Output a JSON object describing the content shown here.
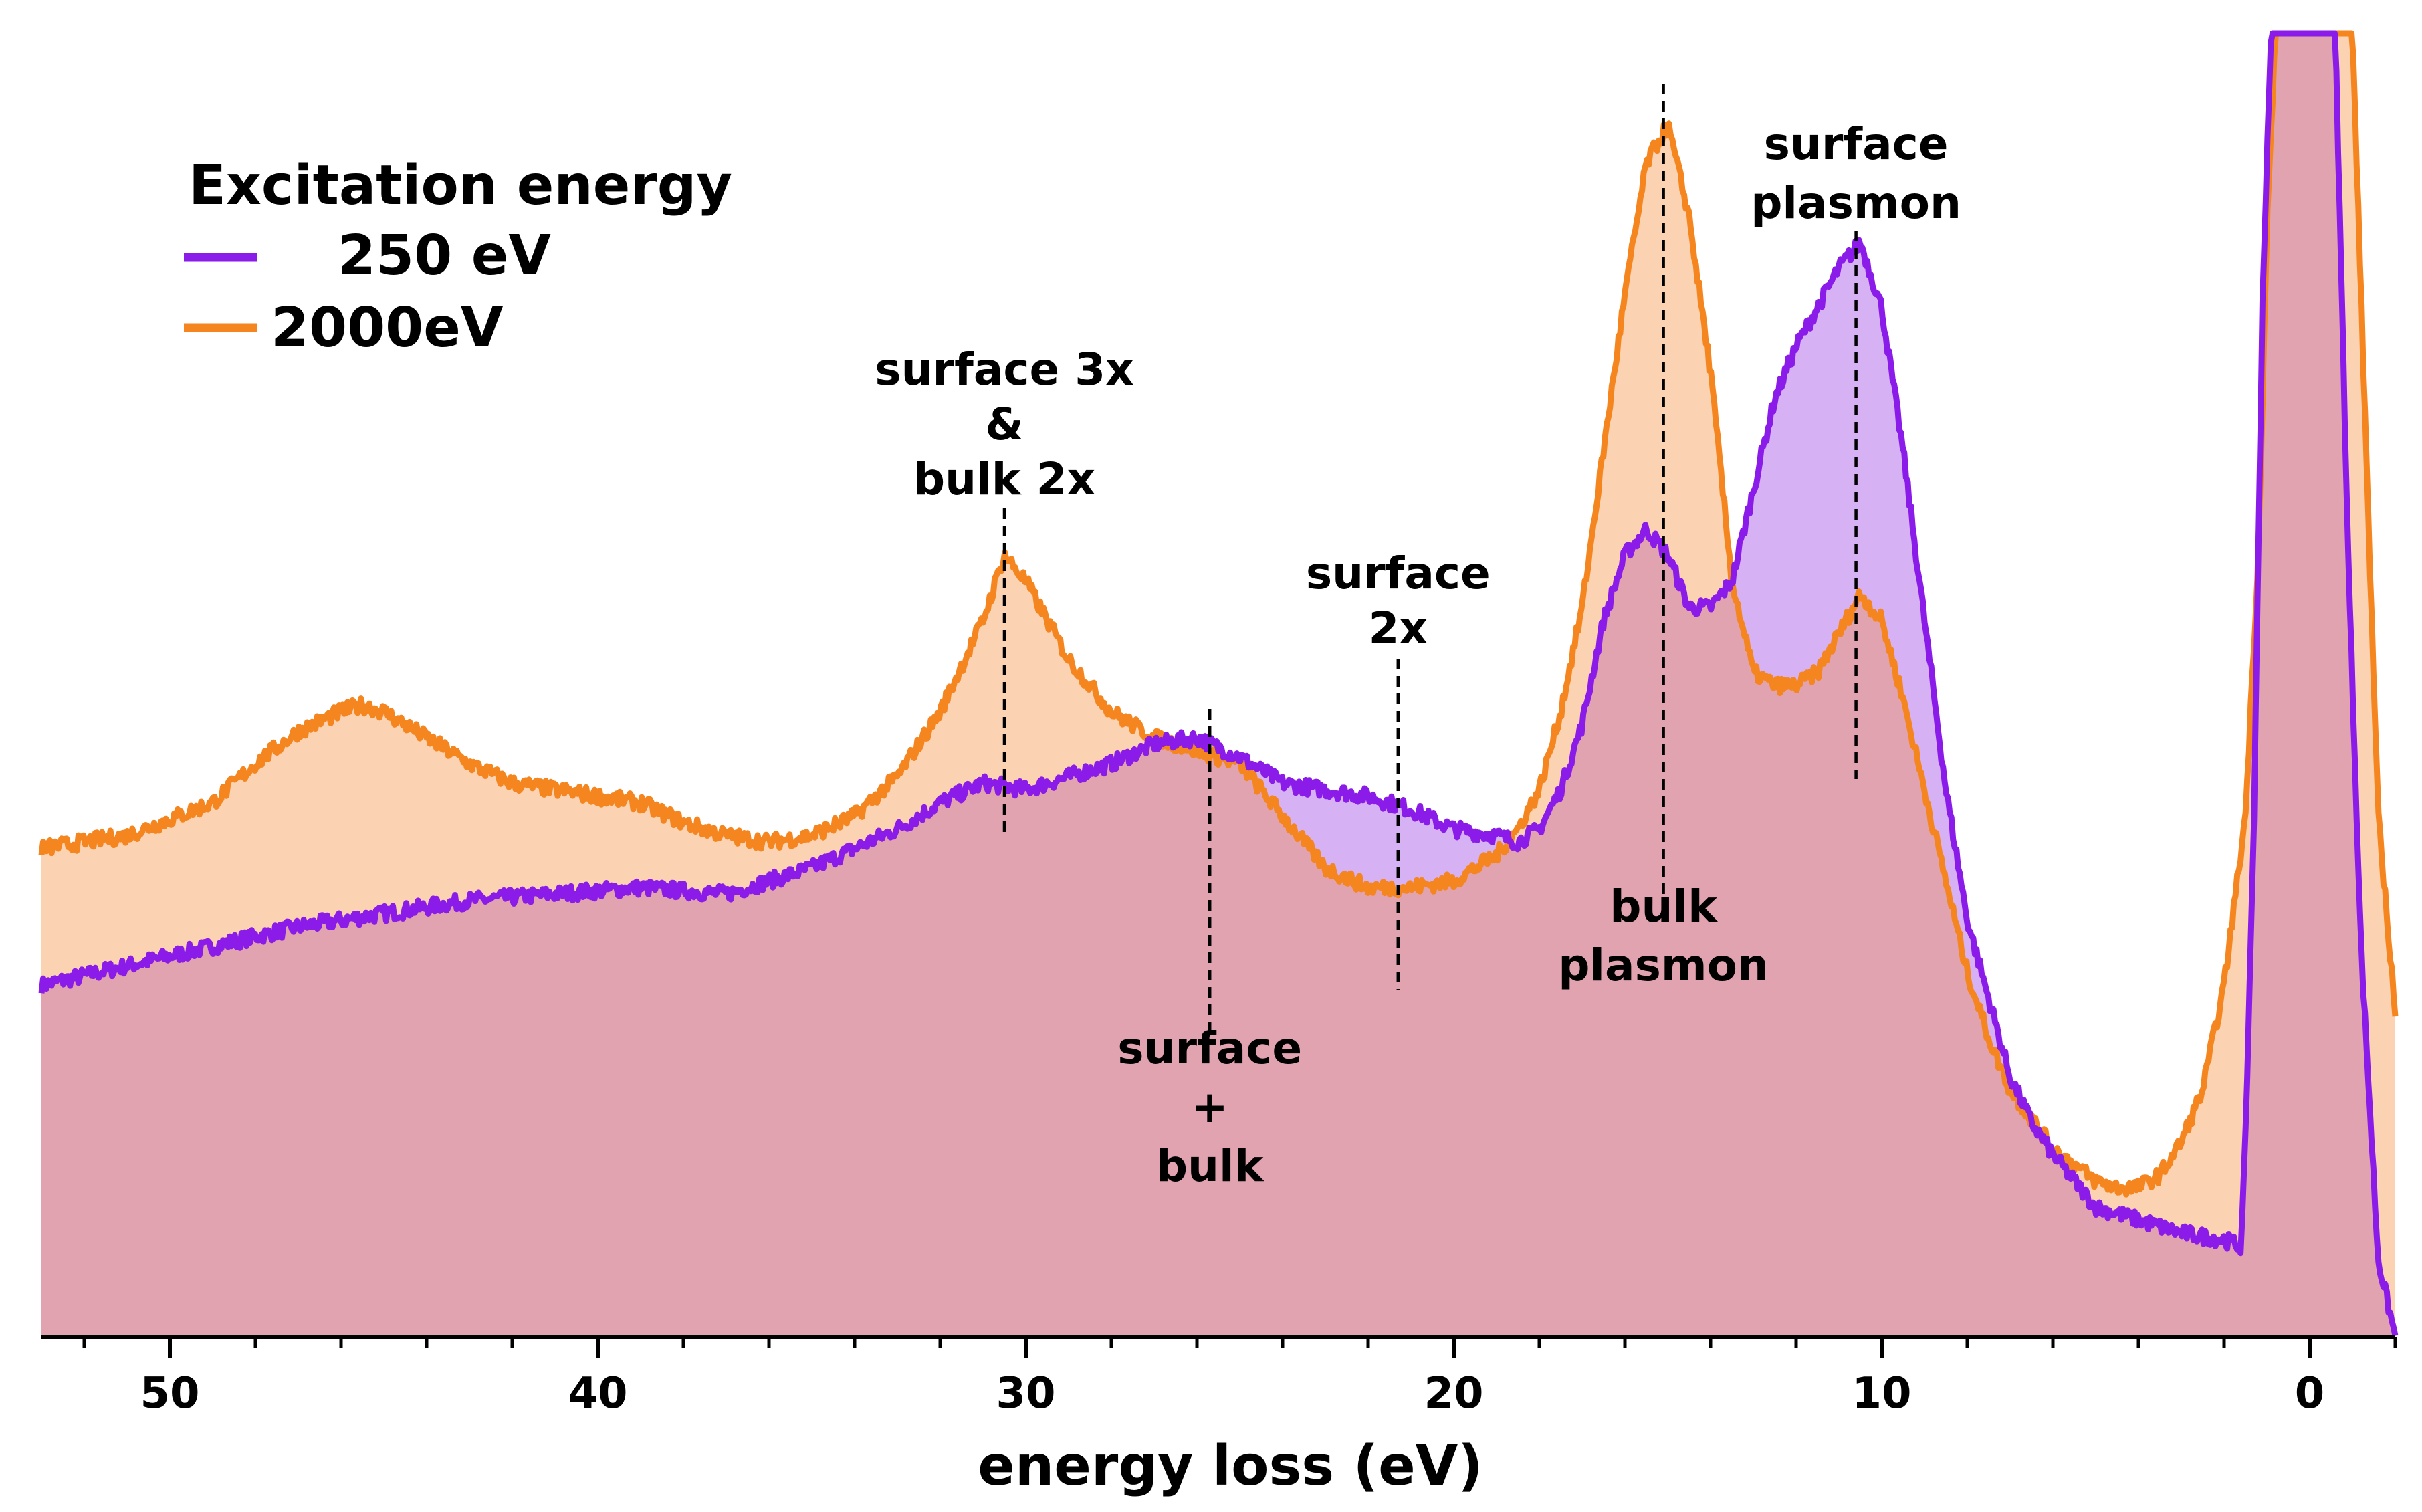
{
  "chart_data": {
    "type": "area",
    "xlabel": "energy loss (eV)",
    "xlim": [
      53,
      -2
    ],
    "ylim": [
      0,
      1
    ],
    "x_reversed": true,
    "xticks": [
      50,
      40,
      30,
      20,
      10,
      0
    ],
    "legend": {
      "title": "Excitation energy",
      "placement": "top-left",
      "entries": [
        {
          "label": "250 eV",
          "color": "#8a1be8"
        },
        {
          "label": "2000eV",
          "color": "#f5861f"
        }
      ]
    },
    "series": [
      {
        "name": "250 eV",
        "color": "#8a1be8",
        "fill": "#d6b2f5",
        "x": [
          53,
          51,
          49,
          47,
          45,
          43,
          41,
          39,
          37,
          35,
          33,
          32,
          31,
          30,
          29,
          28,
          27,
          26,
          25,
          24,
          23,
          22,
          21,
          20,
          19,
          18.5,
          18,
          17.5,
          17,
          16.5,
          16,
          15.5,
          15,
          14.5,
          14,
          13.5,
          13,
          12.5,
          12,
          11.5,
          11,
          10.5,
          10,
          9.5,
          9,
          8.5,
          8,
          7.5,
          7,
          6.5,
          6,
          5.5,
          5,
          4,
          3,
          2,
          1.6,
          1.5,
          1.3,
          1.1,
          0.9,
          0.7,
          0.5,
          0.3,
          0,
          -0.3,
          -0.6,
          -0.9,
          -1.2,
          -1.6,
          -2
        ],
        "y": [
          0.27,
          0.285,
          0.3,
          0.315,
          0.325,
          0.335,
          0.34,
          0.345,
          0.34,
          0.36,
          0.39,
          0.41,
          0.425,
          0.42,
          0.43,
          0.44,
          0.455,
          0.46,
          0.445,
          0.425,
          0.42,
          0.415,
          0.405,
          0.39,
          0.385,
          0.38,
          0.39,
          0.42,
          0.47,
          0.55,
          0.6,
          0.62,
          0.6,
          0.56,
          0.56,
          0.58,
          0.65,
          0.72,
          0.76,
          0.79,
          0.82,
          0.84,
          0.79,
          0.68,
          0.55,
          0.42,
          0.32,
          0.26,
          0.2,
          0.165,
          0.14,
          0.12,
          0.1,
          0.09,
          0.08,
          0.075,
          0.07,
          0.15,
          0.4,
          0.8,
          1.0,
          1.0,
          1.0,
          1.0,
          1.0,
          1.0,
          1.0,
          0.6,
          0.3,
          0.06,
          0.0
        ]
      },
      {
        "name": "2000eV",
        "color": "#f5861f",
        "fill": "#fbd3b3",
        "x": [
          53,
          51,
          49,
          48,
          47,
          46,
          45.5,
          45,
          44,
          43,
          42,
          41,
          40,
          39,
          38,
          37,
          36,
          35,
          34,
          33,
          32,
          31,
          30.5,
          30,
          29,
          28,
          27,
          26,
          25,
          24,
          23,
          22,
          21,
          20,
          19,
          18.5,
          18,
          17.5,
          17,
          16.5,
          16,
          15.5,
          15,
          14.5,
          14,
          13.5,
          13,
          12.5,
          12,
          11.5,
          11,
          10.5,
          10,
          9.5,
          9,
          8.5,
          8,
          7.5,
          7,
          6,
          5,
          4.5,
          4,
          3.5,
          3,
          2.5,
          2,
          1.5,
          1.2,
          1.0,
          0.8,
          0.5,
          0,
          -0.5,
          -1.0,
          -1.3,
          -1.6,
          -2
        ],
        "y": [
          0.375,
          0.385,
          0.41,
          0.44,
          0.465,
          0.48,
          0.485,
          0.48,
          0.46,
          0.44,
          0.425,
          0.42,
          0.415,
          0.41,
          0.395,
          0.385,
          0.38,
          0.385,
          0.4,
          0.43,
          0.48,
          0.55,
          0.6,
          0.58,
          0.52,
          0.48,
          0.46,
          0.45,
          0.44,
          0.4,
          0.36,
          0.345,
          0.345,
          0.35,
          0.37,
          0.39,
          0.42,
          0.48,
          0.56,
          0.68,
          0.8,
          0.9,
          0.93,
          0.86,
          0.74,
          0.58,
          0.51,
          0.5,
          0.5,
          0.51,
          0.54,
          0.57,
          0.55,
          0.49,
          0.42,
          0.35,
          0.28,
          0.23,
          0.19,
          0.145,
          0.12,
          0.115,
          0.115,
          0.125,
          0.15,
          0.19,
          0.27,
          0.4,
          0.6,
          0.85,
          1.0,
          1.0,
          1.0,
          1.0,
          1.0,
          0.7,
          0.4,
          0.25
        ]
      }
    ],
    "annotations": [
      {
        "lines": [
          "surface 3x",
          "&",
          "bulk 2x"
        ],
        "x": 30.5
      },
      {
        "lines": [
          "surface",
          "2x"
        ],
        "x": 21.3
      },
      {
        "lines": [
          "surface",
          "+",
          "bulk"
        ],
        "x": 25.7
      },
      {
        "lines": [
          "bulk",
          "plasmon"
        ],
        "x": 15.1
      },
      {
        "lines": [
          "surface",
          "plasmon"
        ],
        "x": 10.6
      }
    ]
  }
}
